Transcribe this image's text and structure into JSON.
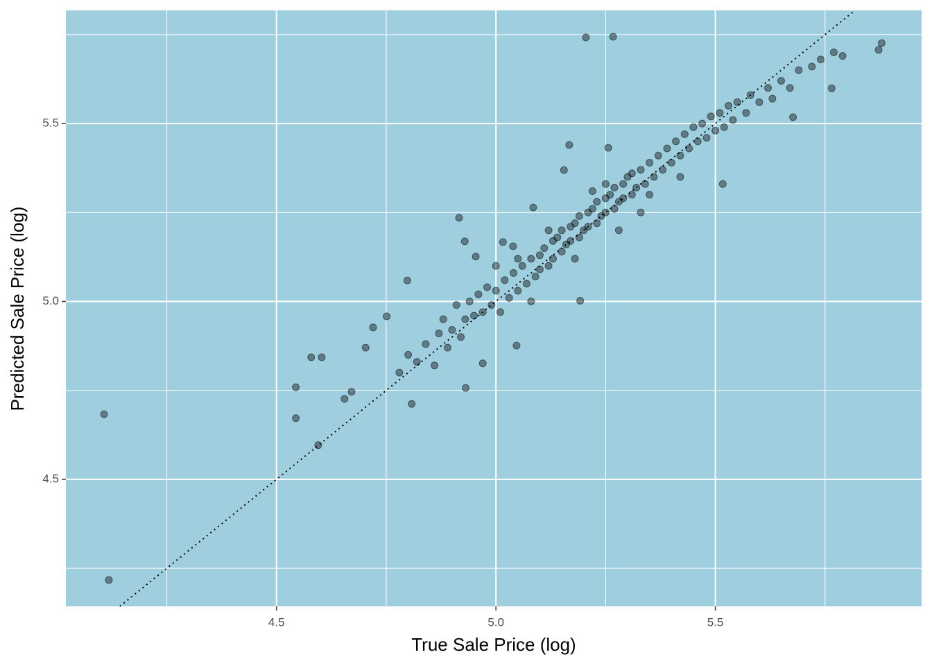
{
  "chart_data": {
    "type": "scatter",
    "x_label": "True Sale Price (log)",
    "y_label": "Predicted Sale Price (log)",
    "xlim": [
      4.02,
      5.97
    ],
    "ylim": [
      4.143,
      5.818
    ],
    "xticks": [
      4.5,
      {
        "value": 5,
        "label": "5.0"
      },
      5.5
    ],
    "yticks": [
      4.5,
      {
        "value": 5,
        "label": "5.0"
      },
      5.5
    ],
    "x_minor": [
      4.25,
      4.75,
      5.25,
      5.75
    ],
    "y_minor": [
      4.25,
      4.75,
      5.25,
      5.75
    ],
    "grid": true,
    "background": "#9fcfdf",
    "color": "#000000",
    "x": [
      4.107,
      4.118,
      5.205,
      5.267,
      5.872,
      5.879,
      4.544,
      4.544,
      4.579,
      4.603,
      4.595,
      4.655,
      4.671,
      4.703,
      4.72,
      4.751,
      4.798,
      4.808,
      4.916,
      4.929,
      4.954,
      5.167,
      5.155,
      5.256,
      5.677,
      5.765,
      5.517,
      5.192,
      5.047,
      4.931,
      4.97,
      5.085,
      5.039,
      5.016,
      4.78,
      4.8,
      4.82,
      4.84,
      4.86,
      4.87,
      4.88,
      4.89,
      4.9,
      4.91,
      4.92,
      4.93,
      4.94,
      4.95,
      4.96,
      4.97,
      4.98,
      4.99,
      5.0,
      5.01,
      5.02,
      5.03,
      5.04,
      5.05,
      5.06,
      5.07,
      5.08,
      5.09,
      5.1,
      5.1,
      5.11,
      5.12,
      5.13,
      5.13,
      5.14,
      5.15,
      5.15,
      5.16,
      5.17,
      5.17,
      5.18,
      5.19,
      5.19,
      5.2,
      5.21,
      5.21,
      5.22,
      5.23,
      5.23,
      5.24,
      5.25,
      5.25,
      5.26,
      5.27,
      5.27,
      5.28,
      5.29,
      5.29,
      5.3,
      5.31,
      5.31,
      5.32,
      5.33,
      5.34,
      5.35,
      5.36,
      5.37,
      5.38,
      5.39,
      5.4,
      5.41,
      5.42,
      5.43,
      5.44,
      5.45,
      5.46,
      5.47,
      5.48,
      5.49,
      5.5,
      5.51,
      5.52,
      5.53,
      5.54,
      5.55,
      5.57,
      5.58,
      5.6,
      5.62,
      5.63,
      5.65,
      5.67,
      5.69,
      5.72,
      5.74,
      5.77,
      5.79,
      5.12,
      5.18,
      5.22,
      5.28,
      5.35,
      5.42,
      5.05,
      5.08,
      5.0,
      5.25,
      5.33
    ],
    "values": [
      4.683,
      4.217,
      5.742,
      5.744,
      5.707,
      5.726,
      4.759,
      4.672,
      4.843,
      4.843,
      4.596,
      4.726,
      4.746,
      4.87,
      4.927,
      4.958,
      5.059,
      4.712,
      5.235,
      5.169,
      5.126,
      5.44,
      5.369,
      5.432,
      5.518,
      5.599,
      5.33,
      5.002,
      4.876,
      4.757,
      4.826,
      5.264,
      5.155,
      5.167,
      4.8,
      4.85,
      4.83,
      4.88,
      4.82,
      4.91,
      4.95,
      4.87,
      4.92,
      4.99,
      4.9,
      4.95,
      5.0,
      4.96,
      5.02,
      4.97,
      5.04,
      4.99,
      5.03,
      4.97,
      5.06,
      5.01,
      5.08,
      5.03,
      5.1,
      5.05,
      5.12,
      5.07,
      5.13,
      5.09,
      5.15,
      5.1,
      5.17,
      5.12,
      5.18,
      5.14,
      5.2,
      5.16,
      5.21,
      5.17,
      5.22,
      5.18,
      5.24,
      5.2,
      5.25,
      5.21,
      5.26,
      5.22,
      5.28,
      5.24,
      5.29,
      5.25,
      5.3,
      5.26,
      5.32,
      5.28,
      5.33,
      5.29,
      5.35,
      5.3,
      5.36,
      5.32,
      5.37,
      5.33,
      5.39,
      5.35,
      5.41,
      5.37,
      5.43,
      5.39,
      5.45,
      5.41,
      5.47,
      5.43,
      5.49,
      5.45,
      5.5,
      5.46,
      5.52,
      5.48,
      5.53,
      5.49,
      5.55,
      5.51,
      5.56,
      5.53,
      5.58,
      5.56,
      5.6,
      5.57,
      5.62,
      5.6,
      5.65,
      5.66,
      5.68,
      5.7,
      5.69,
      5.2,
      5.12,
      5.31,
      5.2,
      5.3,
      5.35,
      5.12,
      5.0,
      5.1,
      5.33,
      5.25
    ]
  }
}
